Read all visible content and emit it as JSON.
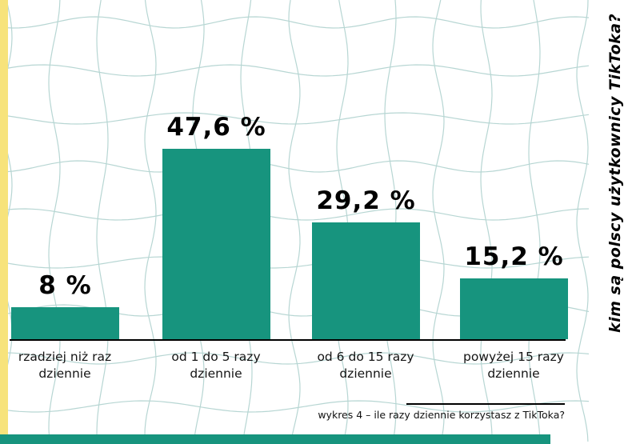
{
  "page": {
    "side_text": "kim są polscy użytkownicy TikToka?",
    "caption": "wykres 4 – ile razy dziennie korzystasz z TikToka?"
  },
  "colors": {
    "bar_teal": "#17947E",
    "accent_yellow": "#f7e37b",
    "grid_line": "#b7d6d3"
  },
  "chart_data": {
    "type": "bar",
    "title": "",
    "xlabel": "",
    "ylabel": "",
    "unit": "%",
    "categories": [
      "rzadziej niż raz dziennie",
      "od 1 do 5 razy dziennie",
      "od 6 do 15 razy dziennie",
      "powyżej 15 razy dziennie"
    ],
    "values": [
      8,
      47.6,
      29.2,
      15.2
    ],
    "value_labels": [
      "8 %",
      "47,6 %",
      "29,2 %",
      "15,2 %"
    ],
    "ylim": [
      0,
      50
    ],
    "grid": "decorative wavy background grid",
    "legend": "none",
    "caption": "wykres 4 – ile razy dziennie korzystasz z TikToka?"
  }
}
